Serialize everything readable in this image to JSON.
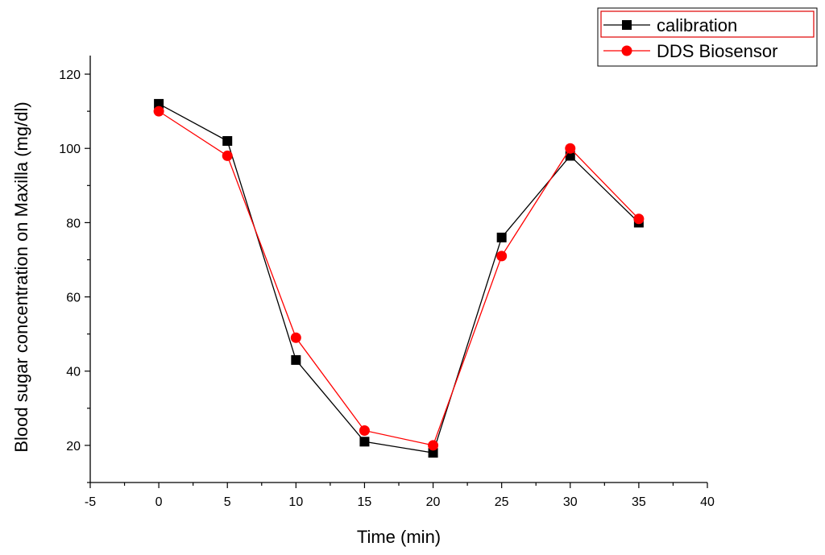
{
  "chart_data": {
    "type": "line",
    "title": "",
    "xlabel": "Time (min)",
    "ylabel": "Blood sugar concentration on Maxilla (mg/dl)",
    "xlim": [
      -5,
      40
    ],
    "ylim": [
      10,
      125
    ],
    "xticks": [
      -5,
      0,
      5,
      10,
      15,
      20,
      25,
      30,
      35,
      40
    ],
    "yticks": [
      20,
      40,
      60,
      80,
      100,
      120
    ],
    "legend_position": "top-right",
    "grid": false,
    "series": [
      {
        "name": "calibration",
        "color": "#000000",
        "marker": "square",
        "x": [
          0,
          5,
          10,
          15,
          20,
          25,
          30,
          35
        ],
        "y": [
          112,
          102,
          43,
          21,
          18,
          76,
          98,
          80
        ]
      },
      {
        "name": "DDS Biosensor",
        "color": "#ff0000",
        "marker": "circle",
        "x": [
          0,
          5,
          10,
          15,
          20,
          25,
          30,
          35
        ],
        "y": [
          110,
          98,
          49,
          24,
          20,
          71,
          100,
          81
        ]
      }
    ]
  }
}
